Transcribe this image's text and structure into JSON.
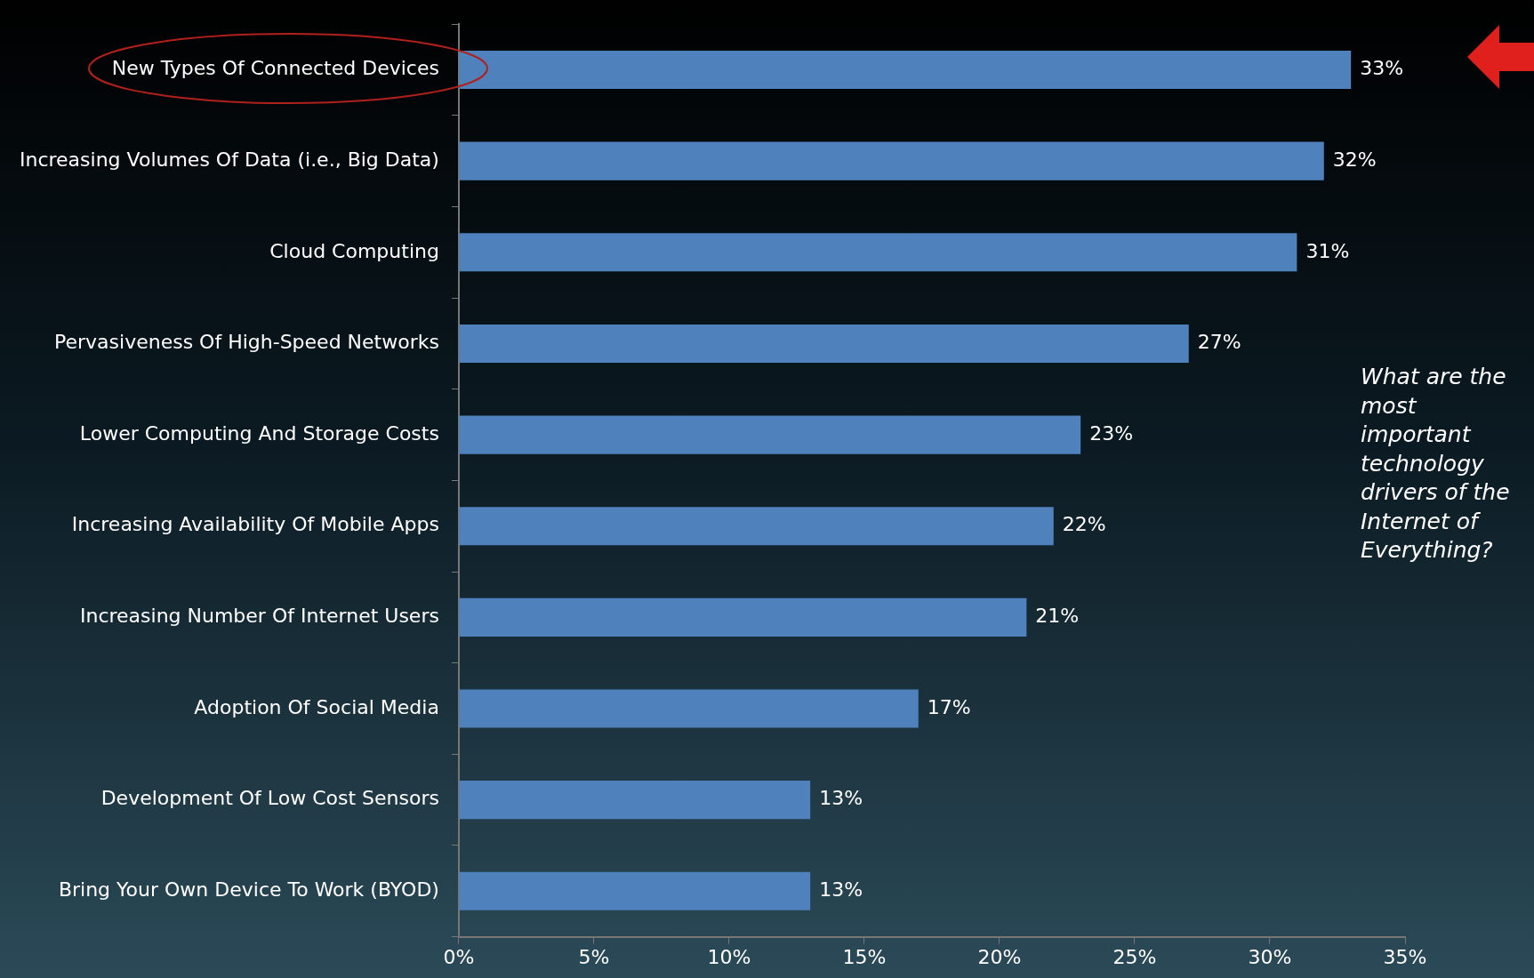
{
  "chart_data": {
    "type": "bar",
    "orientation": "horizontal",
    "categories": [
      "New Types Of Connected Devices",
      "Increasing Volumes Of Data (i.e., Big Data)",
      "Cloud Computing",
      "Pervasiveness Of High-Speed Networks",
      "Lower Computing And Storage Costs",
      "Increasing Availability Of Mobile Apps",
      "Increasing Number Of Internet Users",
      "Adoption Of Social Media",
      "Development Of Low Cost Sensors",
      "Bring Your Own Device To Work (BYOD)"
    ],
    "values": [
      33,
      32,
      31,
      27,
      23,
      22,
      21,
      17,
      13,
      13
    ],
    "value_labels": [
      "33%",
      "32%",
      "31%",
      "27%",
      "23%",
      "22%",
      "21%",
      "17%",
      "13%",
      "13%"
    ],
    "color": "#4f81bd",
    "xlim": [
      0,
      35
    ],
    "xticks": [
      {
        "value": 0,
        "label": "0%"
      },
      {
        "value": 5,
        "label": "5%"
      },
      {
        "value": 10,
        "label": "10%"
      },
      {
        "value": 15,
        "label": "15%"
      },
      {
        "value": 20,
        "label": "20%"
      },
      {
        "value": 25,
        "label": "25%"
      },
      {
        "value": 30,
        "label": "30%"
      },
      {
        "value": 35,
        "label": "35%"
      }
    ],
    "annotations": [
      "What are the most important technology drivers of the Internet of Everything?"
    ]
  }
}
